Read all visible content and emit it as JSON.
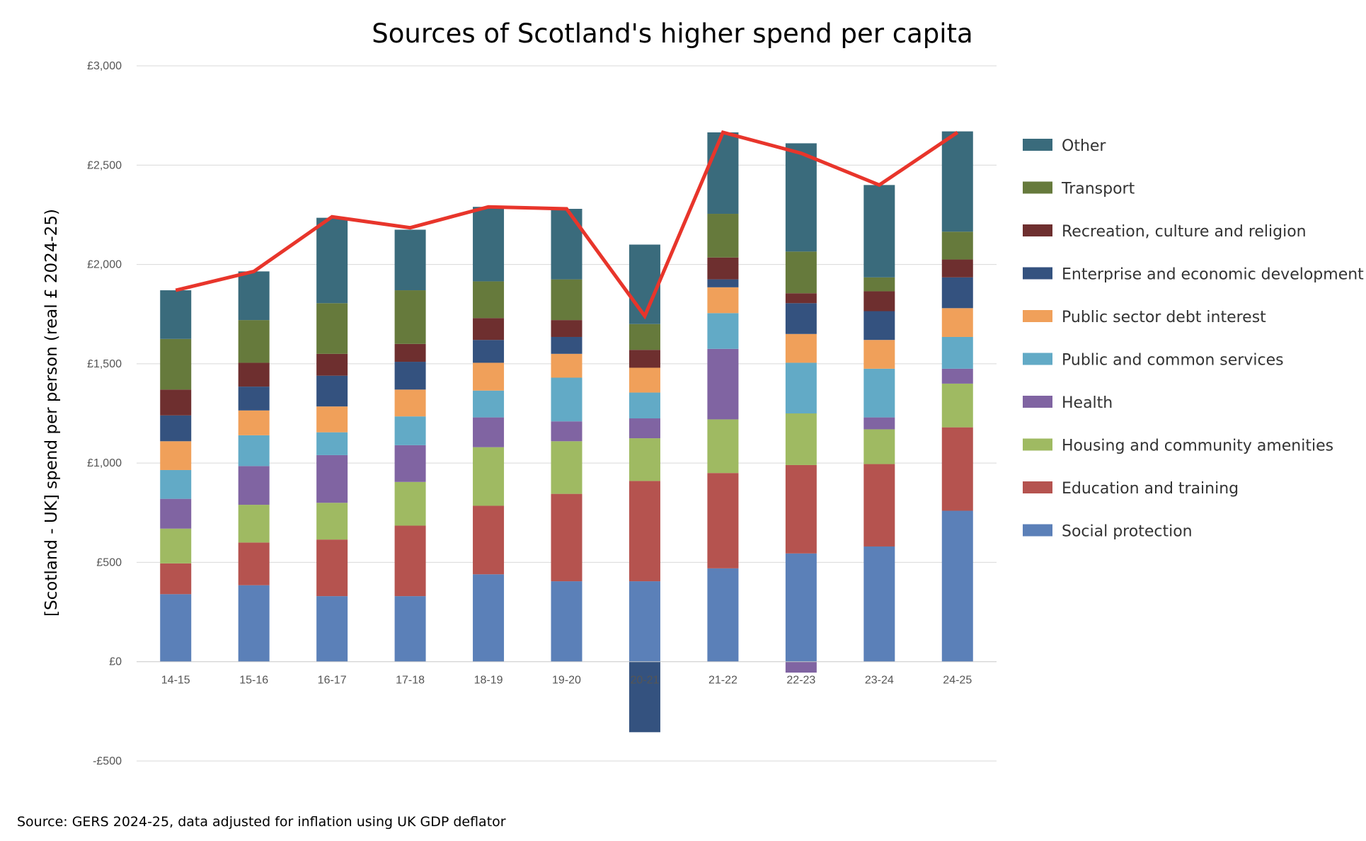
{
  "source_note": "Source: GERS 2024-25, data adjusted for inflation using UK GDP deflator",
  "chart_data": {
    "type": "bar",
    "stacked": true,
    "title": "Sources of Scotland's higher spend per capita",
    "xlabel": "",
    "ylabel": "[Scotland - UK] spend per person (real £ 2024-25)",
    "ylim": [
      -500,
      3000
    ],
    "yticks": [
      -500,
      0,
      500,
      1000,
      1500,
      2000,
      2500,
      3000
    ],
    "ytick_labels": [
      "-£500",
      "£0",
      "£500",
      "£1,000",
      "£1,500",
      "£2,000",
      "£2,500",
      "£3,000"
    ],
    "grid": true,
    "legend_position": "right",
    "categories": [
      "14-15",
      "15-16",
      "16-17",
      "17-18",
      "18-19",
      "19-20",
      "20-21",
      "21-22",
      "22-23",
      "23-24",
      "24-25"
    ],
    "series": [
      {
        "name": "Social protection",
        "color": "#5b80b8",
        "values": [
          340,
          385,
          330,
          330,
          440,
          405,
          405,
          470,
          545,
          580,
          760
        ]
      },
      {
        "name": "Education and training",
        "color": "#b5534f",
        "values": [
          155,
          215,
          285,
          355,
          345,
          440,
          505,
          480,
          445,
          415,
          420
        ]
      },
      {
        "name": "Housing and community amenities",
        "color": "#9fba62",
        "values": [
          175,
          190,
          185,
          220,
          295,
          265,
          215,
          270,
          260,
          175,
          220
        ]
      },
      {
        "name": "Health",
        "color": "#8064a2",
        "values": [
          150,
          195,
          240,
          185,
          150,
          100,
          100,
          355,
          -55,
          60,
          75
        ]
      },
      {
        "name": "Public and common services",
        "color": "#62aac6",
        "values": [
          145,
          155,
          115,
          145,
          135,
          220,
          130,
          180,
          255,
          245,
          160
        ]
      },
      {
        "name": "Public sector debt interest",
        "color": "#f0a05a",
        "values": [
          145,
          125,
          130,
          135,
          140,
          120,
          125,
          130,
          145,
          145,
          145
        ]
      },
      {
        "name": "Enterprise and economic development",
        "color": "#34527f",
        "values": [
          130,
          120,
          155,
          140,
          115,
          85,
          -355,
          40,
          155,
          145,
          155
        ]
      },
      {
        "name": "Recreation, culture and religion",
        "color": "#6e2f2f",
        "values": [
          130,
          120,
          110,
          90,
          110,
          85,
          90,
          110,
          50,
          100,
          90
        ]
      },
      {
        "name": "Transport",
        "color": "#667a3c",
        "values": [
          255,
          215,
          255,
          270,
          185,
          205,
          130,
          220,
          210,
          70,
          140
        ]
      },
      {
        "name": "Other",
        "color": "#3a6b7c",
        "values": [
          245,
          245,
          430,
          305,
          375,
          355,
          400,
          410,
          545,
          465,
          505
        ]
      }
    ],
    "total_line": {
      "color": "#e8352b",
      "values": [
        1870,
        1965,
        2240,
        2185,
        2290,
        2280,
        1740,
        2665,
        2560,
        2400,
        2665
      ]
    }
  }
}
